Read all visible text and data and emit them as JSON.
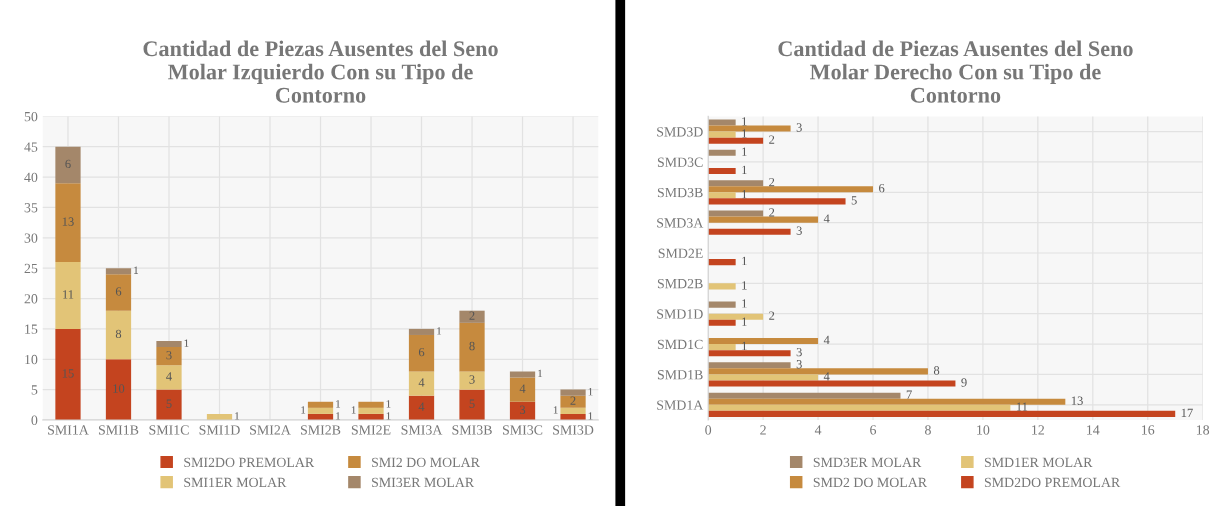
{
  "chart_data": [
    {
      "type": "bar",
      "title": "Cantidad de Piezas Ausentes del Seno\nMolar Izquierdo Con su Tipo de\nContorno",
      "stacked": true,
      "categories": [
        "SMI1A",
        "SMI1B",
        "SMI1C",
        "SMI1D",
        "SMI2A",
        "SMI2B",
        "SMI2E",
        "SMI3A",
        "SMI3B",
        "SMI3C",
        "SMI3D"
      ],
      "series": [
        {
          "name": "SMI2DO PREMOLAR",
          "color": "#c4441f",
          "values": [
            15,
            10,
            5,
            null,
            null,
            1,
            1,
            4,
            5,
            3,
            1
          ]
        },
        {
          "name": "SMI1ER MOLAR",
          "color": "#e2c477",
          "values": [
            11,
            8,
            4,
            1,
            null,
            1,
            1,
            4,
            3,
            null,
            1
          ]
        },
        {
          "name": "SMI2 DO MOLAR",
          "color": "#c68a3e",
          "values": [
            13,
            6,
            3,
            null,
            null,
            1,
            1,
            6,
            8,
            4,
            2
          ]
        },
        {
          "name": "SMI3ER MOLAR",
          "color": "#a4876a",
          "values": [
            6,
            1,
            1,
            null,
            null,
            null,
            null,
            1,
            2,
            1,
            1
          ]
        }
      ],
      "ylim": [
        0,
        50
      ],
      "yticks": [
        0,
        5,
        10,
        15,
        20,
        25,
        30,
        35,
        40,
        45,
        50
      ],
      "grid": true,
      "legend": "bottom",
      "data_labels": true
    },
    {
      "type": "bar",
      "title": "Cantidad de Piezas Ausentes del Seno\nMolar Derecho Con su Tipo de\nContorno",
      "orientation": "horizontal",
      "categories": [
        "SMD3D",
        "SMD3C",
        "SMD3B",
        "SMD3A",
        "SMD2E",
        "SMD2B",
        "SMD1D",
        "SMD1C",
        "SMD1B",
        "SMD1A"
      ],
      "series": [
        {
          "name": "SMD3ER MOLAR",
          "color": "#a4876a",
          "values": [
            1,
            1,
            2,
            2,
            null,
            null,
            1,
            null,
            3,
            7
          ]
        },
        {
          "name": "SMD2 DO MOLAR",
          "color": "#c68a3e",
          "values": [
            3,
            null,
            6,
            4,
            null,
            null,
            null,
            4,
            8,
            13
          ]
        },
        {
          "name": "SMD1ER MOLAR",
          "color": "#e2c477",
          "values": [
            1,
            null,
            1,
            null,
            null,
            1,
            2,
            1,
            4,
            11
          ]
        },
        {
          "name": "SMD2DO PREMOLAR",
          "color": "#c4441f",
          "values": [
            2,
            1,
            5,
            3,
            1,
            null,
            1,
            3,
            9,
            17
          ]
        }
      ],
      "xlim": [
        0,
        18
      ],
      "xticks": [
        0,
        2,
        4,
        6,
        8,
        10,
        12,
        14,
        16,
        18
      ],
      "grid": true,
      "legend": "bottom",
      "data_labels": true
    }
  ]
}
